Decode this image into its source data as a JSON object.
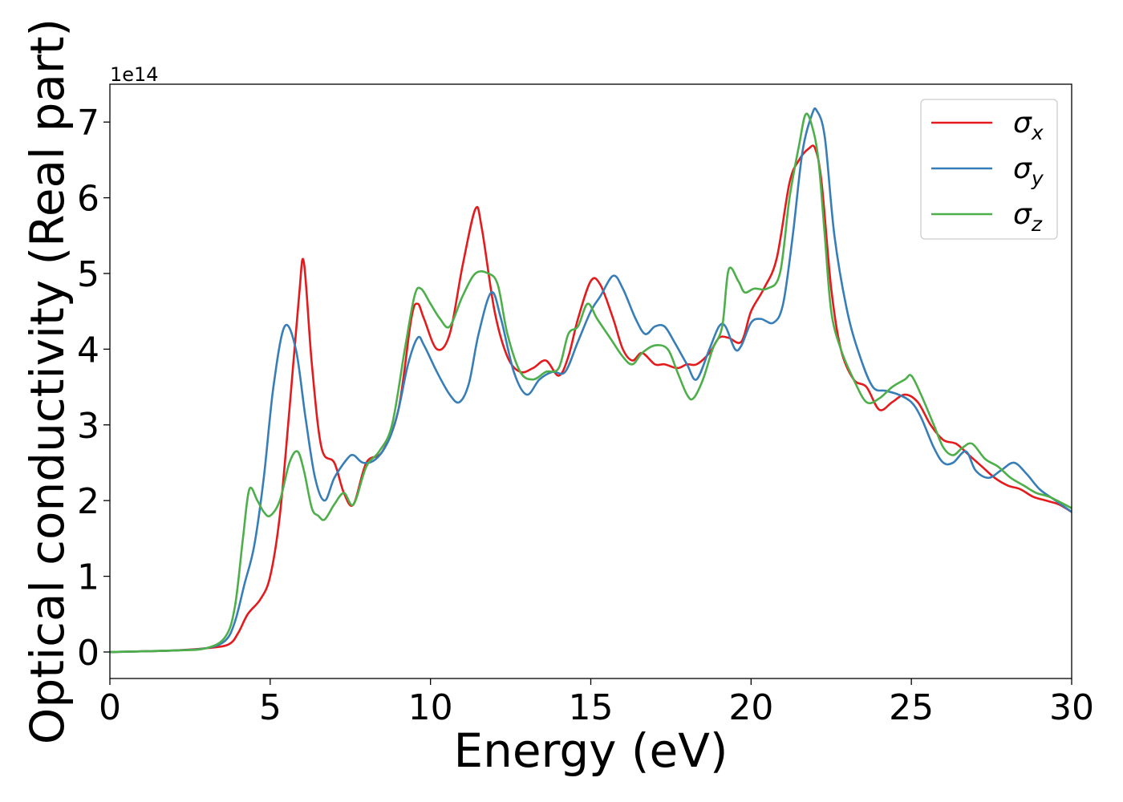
{
  "chart_data": {
    "type": "line",
    "xlabel": "Energy (eV)",
    "ylabel": "Optical conductivity (Real part)",
    "y_offset_text": "1e14",
    "y_scale": 100000000000000.0,
    "xlim": [
      0,
      30
    ],
    "ylim": [
      -0.35,
      7.5
    ],
    "x_ticks": [
      0,
      5,
      10,
      15,
      20,
      25,
      30
    ],
    "y_ticks": [
      0,
      1,
      2,
      3,
      4,
      5,
      6,
      7
    ],
    "grid": false,
    "legend_position": "top-right",
    "series": [
      {
        "name": "σx",
        "legend_symbol": "σ",
        "legend_sub": "x",
        "color": "#e41a1c",
        "x": [
          0,
          2,
          3,
          3.7,
          4.0,
          4.3,
          4.7,
          5.0,
          5.3,
          5.6,
          5.9,
          6.05,
          6.3,
          6.6,
          7.0,
          7.3,
          7.6,
          8.0,
          8.5,
          9.0,
          9.4,
          9.6,
          9.8,
          10.2,
          10.6,
          11.0,
          11.4,
          11.6,
          12.0,
          12.4,
          12.8,
          13.2,
          13.6,
          14.0,
          14.3,
          14.6,
          15.0,
          15.3,
          15.7,
          16.0,
          16.3,
          16.6,
          17.0,
          17.3,
          17.7,
          18.0,
          18.3,
          18.7,
          19.0,
          19.3,
          19.7,
          20.0,
          20.4,
          20.8,
          21.2,
          21.5,
          21.8,
          22.0,
          22.2,
          22.5,
          22.8,
          23.2,
          23.6,
          24.0,
          24.4,
          24.8,
          25.2,
          25.6,
          26.0,
          26.4,
          26.8,
          27.2,
          27.6,
          28.0,
          28.4,
          28.8,
          29.2,
          29.6,
          30.0
        ],
        "y": [
          0,
          0.02,
          0.05,
          0.1,
          0.25,
          0.5,
          0.7,
          1.0,
          1.8,
          3.2,
          4.7,
          5.15,
          3.8,
          2.7,
          2.5,
          2.1,
          1.95,
          2.5,
          2.65,
          3.2,
          4.4,
          4.6,
          4.4,
          4.0,
          4.2,
          5.1,
          5.85,
          5.6,
          4.5,
          3.9,
          3.7,
          3.75,
          3.85,
          3.65,
          3.9,
          4.4,
          4.9,
          4.85,
          4.4,
          4.0,
          3.85,
          3.95,
          3.8,
          3.8,
          3.75,
          3.8,
          3.8,
          3.95,
          4.15,
          4.15,
          4.1,
          4.5,
          4.8,
          5.2,
          6.2,
          6.5,
          6.65,
          6.65,
          6.2,
          4.8,
          4.0,
          3.6,
          3.5,
          3.2,
          3.3,
          3.4,
          3.3,
          3.0,
          2.8,
          2.75,
          2.6,
          2.45,
          2.3,
          2.2,
          2.15,
          2.05,
          2.0,
          1.95,
          1.85
        ]
      },
      {
        "name": "σy",
        "legend_symbol": "σ",
        "legend_sub": "y",
        "color": "#377eb8",
        "x": [
          0,
          2,
          3,
          3.6,
          3.9,
          4.2,
          4.5,
          4.8,
          5.1,
          5.45,
          5.8,
          6.1,
          6.4,
          6.7,
          7.0,
          7.4,
          7.6,
          7.9,
          8.3,
          8.7,
          9.0,
          9.3,
          9.6,
          9.8,
          10.2,
          10.6,
          10.9,
          11.2,
          11.5,
          11.9,
          12.2,
          12.6,
          13.0,
          13.4,
          13.8,
          14.2,
          14.6,
          15.0,
          15.3,
          15.7,
          16.0,
          16.4,
          16.7,
          17.0,
          17.3,
          17.6,
          18.0,
          18.3,
          18.7,
          19.0,
          19.2,
          19.5,
          19.7,
          20.0,
          20.3,
          20.7,
          21.0,
          21.3,
          21.6,
          21.9,
          22.05,
          22.3,
          22.6,
          23.0,
          23.4,
          23.8,
          24.2,
          24.6,
          25.0,
          25.3,
          25.7,
          26.0,
          26.3,
          26.7,
          27.0,
          27.4,
          27.8,
          28.2,
          28.6,
          29.0,
          29.5,
          30.0
        ],
        "y": [
          0,
          0.02,
          0.05,
          0.15,
          0.4,
          0.9,
          1.4,
          2.3,
          3.5,
          4.3,
          4.0,
          3.1,
          2.3,
          2.0,
          2.3,
          2.55,
          2.6,
          2.5,
          2.55,
          2.8,
          3.2,
          3.8,
          4.15,
          4.05,
          3.7,
          3.4,
          3.3,
          3.55,
          4.2,
          4.75,
          4.4,
          3.7,
          3.4,
          3.6,
          3.7,
          3.7,
          4.1,
          4.5,
          4.7,
          4.97,
          4.8,
          4.4,
          4.2,
          4.3,
          4.3,
          4.1,
          3.8,
          3.6,
          4.0,
          4.3,
          4.3,
          4.0,
          4.05,
          4.35,
          4.4,
          4.35,
          4.6,
          5.5,
          6.6,
          7.1,
          7.15,
          6.8,
          5.5,
          4.5,
          3.9,
          3.5,
          3.45,
          3.4,
          3.3,
          3.1,
          2.7,
          2.5,
          2.5,
          2.65,
          2.4,
          2.3,
          2.4,
          2.5,
          2.35,
          2.15,
          2.0,
          1.85
        ]
      },
      {
        "name": "σz",
        "legend_symbol": "σ",
        "legend_sub": "z",
        "color": "#4daf4a",
        "x": [
          0,
          2,
          3,
          3.6,
          3.9,
          4.15,
          4.35,
          4.6,
          4.8,
          5.0,
          5.3,
          5.6,
          5.85,
          6.05,
          6.3,
          6.5,
          6.7,
          7.0,
          7.3,
          7.6,
          8.0,
          8.4,
          8.8,
          9.2,
          9.5,
          9.7,
          10.0,
          10.3,
          10.6,
          11.0,
          11.4,
          11.8,
          12.1,
          12.4,
          12.8,
          13.2,
          13.6,
          14.0,
          14.3,
          14.6,
          14.9,
          15.2,
          15.6,
          16.0,
          16.3,
          16.6,
          17.0,
          17.4,
          17.7,
          18.0,
          18.2,
          18.5,
          18.8,
          19.1,
          19.3,
          19.6,
          19.8,
          20.1,
          20.5,
          20.9,
          21.2,
          21.5,
          21.7,
          21.9,
          22.1,
          22.3,
          22.5,
          22.8,
          23.2,
          23.6,
          24.0,
          24.4,
          24.8,
          25.0,
          25.3,
          25.7,
          26.0,
          26.3,
          26.6,
          26.9,
          27.3,
          27.7,
          28.1,
          28.5,
          28.9,
          29.3,
          30.0
        ],
        "y": [
          0,
          0.02,
          0.05,
          0.2,
          0.6,
          1.5,
          2.15,
          2.0,
          1.85,
          1.8,
          2.0,
          2.5,
          2.65,
          2.4,
          1.9,
          1.8,
          1.75,
          1.95,
          2.1,
          1.95,
          2.45,
          2.65,
          3.0,
          4.0,
          4.7,
          4.8,
          4.6,
          4.4,
          4.3,
          4.7,
          5.0,
          5.0,
          4.85,
          4.2,
          3.7,
          3.6,
          3.7,
          3.75,
          4.2,
          4.3,
          4.6,
          4.4,
          4.15,
          3.9,
          3.8,
          3.95,
          4.05,
          4.0,
          3.7,
          3.4,
          3.35,
          3.6,
          4.0,
          4.3,
          5.05,
          4.9,
          4.75,
          4.8,
          4.8,
          5.0,
          6.0,
          6.7,
          7.1,
          6.95,
          6.5,
          5.5,
          4.5,
          4.0,
          3.6,
          3.3,
          3.35,
          3.5,
          3.6,
          3.65,
          3.4,
          3.0,
          2.7,
          2.6,
          2.7,
          2.75,
          2.55,
          2.45,
          2.3,
          2.2,
          2.1,
          2.05,
          1.9
        ]
      }
    ]
  }
}
